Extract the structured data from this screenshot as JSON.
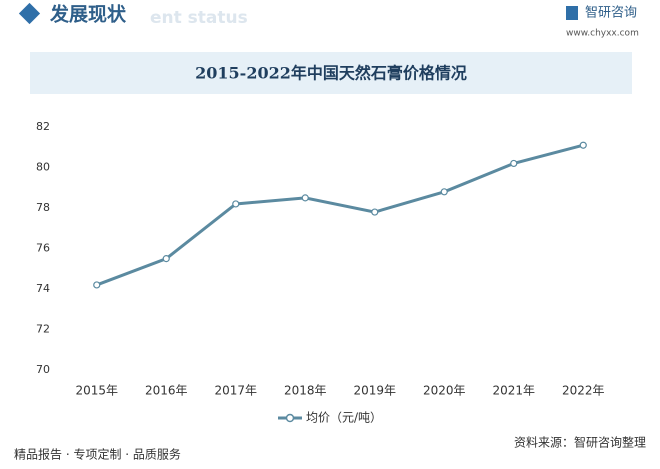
{
  "header": {
    "title": "发展现状",
    "subtitle": "ent status",
    "brand": "智研咨询",
    "website": "www.chyxx.com"
  },
  "chart_data": {
    "type": "line",
    "title": "2015-2022年中国天然石膏价格情况",
    "categories": [
      "2015年",
      "2016年",
      "2017年",
      "2018年",
      "2019年",
      "2020年",
      "2021年",
      "2022年"
    ],
    "series": [
      {
        "name": "均价（元/吨）",
        "color": "#5b8aa0",
        "values": [
          74.2,
          75.5,
          78.2,
          78.5,
          77.8,
          78.8,
          80.2,
          81.1
        ]
      }
    ],
    "ylim": [
      70,
      82
    ],
    "yticks": [
      70,
      72,
      74,
      76,
      78,
      80,
      82
    ],
    "grid": false,
    "legend": "bottom"
  },
  "footer": {
    "slogan": "精品报告 · 专项定制 · 品质服务",
    "source": "资料来源：智研咨询整理"
  }
}
